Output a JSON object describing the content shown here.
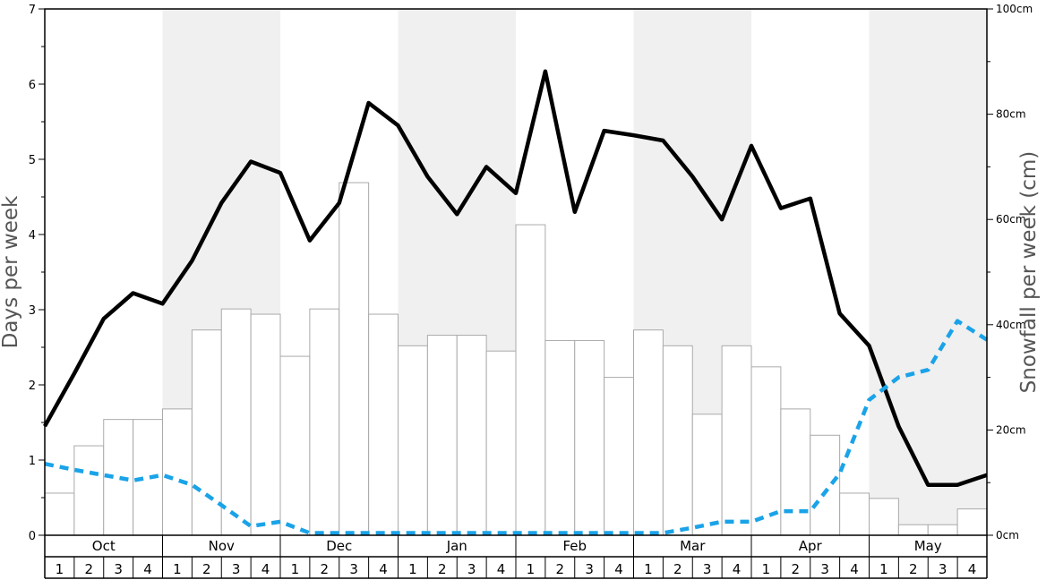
{
  "chart_data": {
    "type": "bar",
    "ylabel_left": "Days per week",
    "ylabel_right": "Snowfall per week (cm)",
    "ylim_left": [
      0,
      7
    ],
    "ylim_right": [
      0,
      100
    ],
    "left_ticks": [
      "0",
      "1",
      "2",
      "3",
      "4",
      "5",
      "6",
      "7"
    ],
    "right_ticks": [
      "0cm",
      "20cm",
      "40cm",
      "60cm",
      "80cm",
      "100cm"
    ],
    "months": [
      "Oct",
      "Nov",
      "Dec",
      "Jan",
      "Feb",
      "Mar",
      "Apr",
      "May"
    ],
    "weeks": [
      "1",
      "2",
      "3",
      "4"
    ],
    "shaded_months": [
      "Nov",
      "Jan",
      "Mar",
      "May"
    ],
    "series": [
      {
        "kind": "bar",
        "axis": "right",
        "color": "#ffffff",
        "values": [
          8,
          17,
          22,
          22,
          24,
          39,
          43,
          42,
          34,
          43,
          67,
          42,
          36,
          38,
          38,
          35,
          59,
          37,
          37,
          30,
          39,
          36,
          23,
          36,
          32,
          24,
          19,
          8,
          7,
          2,
          2,
          5
        ]
      },
      {
        "kind": "line",
        "axis": "left",
        "color": "#000000",
        "style": "solid",
        "values": [
          1.45,
          2.15,
          2.88,
          3.22,
          3.08,
          3.65,
          4.42,
          4.97,
          4.82,
          3.92,
          4.42,
          5.75,
          5.45,
          4.77,
          4.27,
          4.9,
          4.55,
          6.17,
          4.3,
          5.38,
          5.32,
          5.25,
          4.77,
          4.2,
          5.18,
          4.35,
          4.48,
          2.95,
          2.52,
          1.45,
          0.67,
          0.67,
          0.8
        ]
      },
      {
        "kind": "line",
        "axis": "left",
        "color": "#1aa3e8",
        "style": "dashed",
        "values": [
          0.95,
          0.87,
          0.8,
          0.73,
          0.8,
          0.67,
          0.4,
          0.12,
          0.18,
          0.03,
          0.03,
          0.03,
          0.03,
          0.03,
          0.03,
          0.03,
          0.03,
          0.03,
          0.03,
          0.03,
          0.03,
          0.03,
          0.1,
          0.18,
          0.18,
          0.32,
          0.32,
          0.82,
          1.8,
          2.1,
          2.2,
          2.85,
          2.6
        ]
      }
    ]
  }
}
